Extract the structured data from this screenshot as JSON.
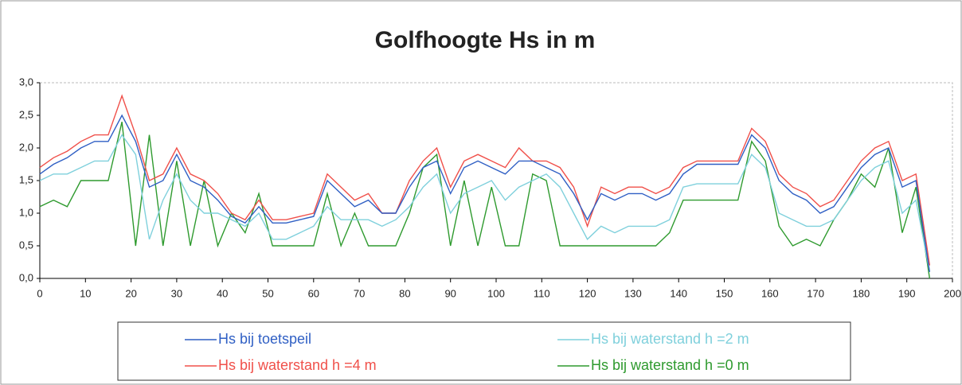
{
  "chart_data": {
    "type": "line",
    "title": "Golfhoogte Hs in m",
    "x": [
      0,
      3,
      6,
      9,
      12,
      15,
      18,
      21,
      24,
      27,
      30,
      33,
      36,
      39,
      42,
      45,
      48,
      51,
      54,
      57,
      60,
      63,
      66,
      69,
      72,
      75,
      78,
      81,
      84,
      87,
      90,
      93,
      96,
      99,
      102,
      105,
      108,
      111,
      114,
      117,
      120,
      123,
      126,
      129,
      132,
      135,
      138,
      141,
      144,
      147,
      150,
      153,
      156,
      159,
      162,
      165,
      168,
      171,
      174,
      177,
      180,
      183,
      186,
      189,
      192,
      195
    ],
    "series": [
      {
        "name": "Hs bij toetspeil",
        "color": "#2f5fc4",
        "values": [
          1.6,
          1.75,
          1.85,
          2.0,
          2.1,
          2.1,
          2.5,
          2.1,
          1.4,
          1.5,
          1.9,
          1.5,
          1.4,
          1.2,
          0.95,
          0.85,
          1.1,
          0.85,
          0.85,
          0.9,
          0.95,
          1.5,
          1.3,
          1.1,
          1.2,
          1.0,
          1.0,
          1.4,
          1.7,
          1.8,
          1.3,
          1.7,
          1.8,
          1.7,
          1.6,
          1.8,
          1.8,
          1.7,
          1.6,
          1.3,
          0.9,
          1.3,
          1.2,
          1.3,
          1.3,
          1.2,
          1.3,
          1.6,
          1.75,
          1.75,
          1.75,
          1.75,
          2.2,
          2.0,
          1.5,
          1.3,
          1.2,
          1.0,
          1.1,
          1.4,
          1.7,
          1.9,
          2.0,
          1.4,
          1.5,
          0.1
        ]
      },
      {
        "name": "Hs bij waterstand h =4 m",
        "color": "#f0504a",
        "values": [
          1.7,
          1.85,
          1.95,
          2.1,
          2.2,
          2.2,
          2.8,
          2.2,
          1.5,
          1.6,
          2.0,
          1.6,
          1.5,
          1.3,
          1.0,
          0.9,
          1.2,
          0.9,
          0.9,
          0.95,
          1.0,
          1.6,
          1.4,
          1.2,
          1.3,
          1.0,
          1.0,
          1.5,
          1.8,
          2.0,
          1.4,
          1.8,
          1.9,
          1.8,
          1.7,
          2.0,
          1.8,
          1.8,
          1.7,
          1.4,
          0.8,
          1.4,
          1.3,
          1.4,
          1.4,
          1.3,
          1.4,
          1.7,
          1.8,
          1.8,
          1.8,
          1.8,
          2.3,
          2.1,
          1.6,
          1.4,
          1.3,
          1.1,
          1.2,
          1.5,
          1.8,
          2.0,
          2.1,
          1.5,
          1.6,
          0.2
        ]
      },
      {
        "name": "Hs bij waterstand h =2 m",
        "color": "#7fd0dc",
        "values": [
          1.5,
          1.6,
          1.6,
          1.7,
          1.8,
          1.8,
          2.2,
          1.9,
          0.6,
          1.2,
          1.6,
          1.2,
          1.0,
          1.0,
          0.9,
          0.8,
          1.0,
          0.6,
          0.6,
          0.7,
          0.8,
          1.1,
          0.9,
          0.9,
          0.9,
          0.8,
          0.9,
          1.1,
          1.4,
          1.6,
          1.0,
          1.3,
          1.4,
          1.5,
          1.2,
          1.4,
          1.5,
          1.6,
          1.4,
          1.0,
          0.6,
          0.8,
          0.7,
          0.8,
          0.8,
          0.8,
          0.9,
          1.4,
          1.45,
          1.45,
          1.45,
          1.45,
          1.9,
          1.7,
          1.0,
          0.9,
          0.8,
          0.8,
          0.9,
          1.2,
          1.5,
          1.7,
          1.8,
          1.0,
          1.2,
          0.1
        ]
      },
      {
        "name": "Hs bij waterstand h =0 m",
        "color": "#2e9a2e",
        "values": [
          1.1,
          1.2,
          1.1,
          1.5,
          1.5,
          1.5,
          2.4,
          0.5,
          2.2,
          0.5,
          1.8,
          0.5,
          1.5,
          0.5,
          1.0,
          0.7,
          1.3,
          0.5,
          0.5,
          0.5,
          0.5,
          1.3,
          0.5,
          1.0,
          0.5,
          0.5,
          0.5,
          1.0,
          1.7,
          1.9,
          0.5,
          1.5,
          0.5,
          1.4,
          0.5,
          0.5,
          1.6,
          1.5,
          0.5,
          0.5,
          0.5,
          0.5,
          0.5,
          0.5,
          0.5,
          0.5,
          0.7,
          1.2,
          1.2,
          1.2,
          1.2,
          1.2,
          2.1,
          1.8,
          0.8,
          0.5,
          0.6,
          0.5,
          0.9,
          1.2,
          1.6,
          1.4,
          2.0,
          0.7,
          1.4,
          0.0
        ]
      }
    ],
    "xlim": [
      0,
      200
    ],
    "xticks": [
      0,
      10,
      20,
      30,
      40,
      50,
      60,
      70,
      80,
      90,
      100,
      110,
      120,
      130,
      140,
      150,
      160,
      170,
      180,
      190,
      200
    ],
    "ylim": [
      0,
      3
    ],
    "yticks": [
      {
        "value": 0,
        "label": "0,0"
      },
      {
        "value": 0.5,
        "label": "0,5"
      },
      {
        "value": 1,
        "label": "1,0"
      },
      {
        "value": 1.5,
        "label": "1,5"
      },
      {
        "value": 2,
        "label": "2,0"
      },
      {
        "value": 2.5,
        "label": "2,5"
      },
      {
        "value": 3,
        "label": "3,0"
      }
    ],
    "grid": false
  }
}
